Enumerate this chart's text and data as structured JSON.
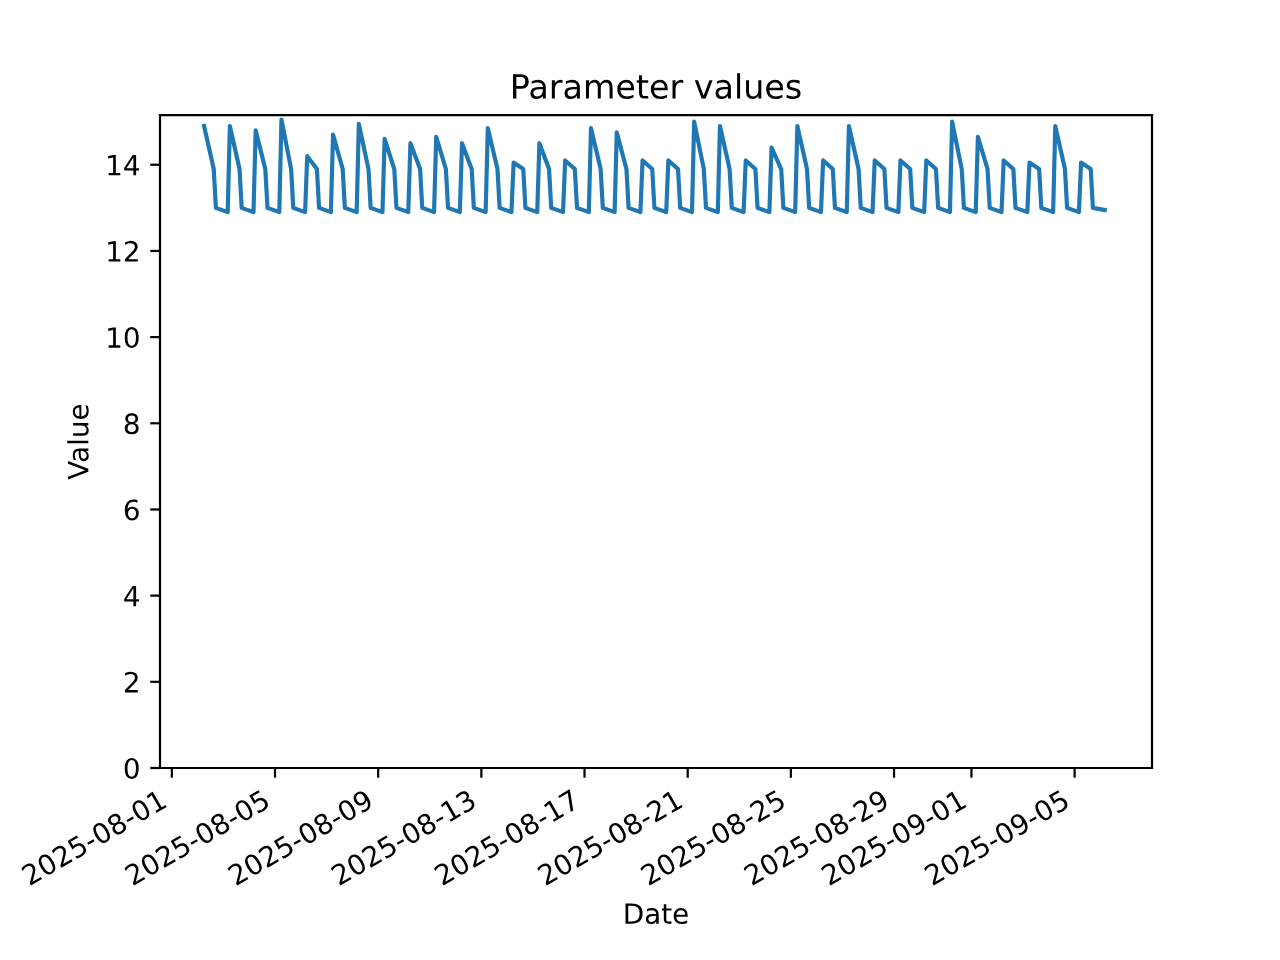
{
  "chart_data": {
    "type": "line",
    "title": "Parameter values",
    "xlabel": "Date",
    "ylabel": "Value",
    "xlim": [
      "2025-07-31T13:00",
      "2025-09-08T00:00"
    ],
    "ylim": [
      0,
      15.15
    ],
    "xticks": [
      "2025-08-01",
      "2025-08-05",
      "2025-08-09",
      "2025-08-13",
      "2025-08-17",
      "2025-08-21",
      "2025-08-25",
      "2025-08-29",
      "2025-09-01",
      "2025-09-05"
    ],
    "yticks": [
      0,
      2,
      4,
      6,
      8,
      10,
      12,
      14
    ],
    "grid": false,
    "legend": false,
    "marker": "none",
    "line_style": "solid",
    "series": [
      {
        "color": "#1f77b4",
        "x": [
          "2025-08-02T06:00",
          "2025-08-02T15:00",
          "2025-08-02T17:00",
          "2025-08-03T04:00",
          "2025-08-03T06:00",
          "2025-08-03T15:00",
          "2025-08-03T17:00",
          "2025-08-04T04:00",
          "2025-08-04T06:00",
          "2025-08-04T15:00",
          "2025-08-04T17:00",
          "2025-08-05T04:00",
          "2025-08-05T06:00",
          "2025-08-05T15:00",
          "2025-08-05T17:00",
          "2025-08-06T04:00",
          "2025-08-06T06:00",
          "2025-08-06T15:00",
          "2025-08-06T17:00",
          "2025-08-07T04:00",
          "2025-08-07T06:00",
          "2025-08-07T15:00",
          "2025-08-07T17:00",
          "2025-08-08T04:00",
          "2025-08-08T06:00",
          "2025-08-08T15:00",
          "2025-08-08T17:00",
          "2025-08-09T04:00",
          "2025-08-09T06:00",
          "2025-08-09T15:00",
          "2025-08-09T17:00",
          "2025-08-10T04:00",
          "2025-08-10T06:00",
          "2025-08-10T15:00",
          "2025-08-10T17:00",
          "2025-08-11T04:00",
          "2025-08-11T06:00",
          "2025-08-11T15:00",
          "2025-08-11T17:00",
          "2025-08-12T04:00",
          "2025-08-12T06:00",
          "2025-08-12T15:00",
          "2025-08-12T17:00",
          "2025-08-13T04:00",
          "2025-08-13T06:00",
          "2025-08-13T15:00",
          "2025-08-13T17:00",
          "2025-08-14T04:00",
          "2025-08-14T06:00",
          "2025-08-14T15:00",
          "2025-08-14T17:00",
          "2025-08-15T04:00",
          "2025-08-15T06:00",
          "2025-08-15T15:00",
          "2025-08-15T17:00",
          "2025-08-16T04:00",
          "2025-08-16T06:00",
          "2025-08-16T15:00",
          "2025-08-16T17:00",
          "2025-08-17T04:00",
          "2025-08-17T06:00",
          "2025-08-17T15:00",
          "2025-08-17T17:00",
          "2025-08-18T04:00",
          "2025-08-18T06:00",
          "2025-08-18T15:00",
          "2025-08-18T17:00",
          "2025-08-19T04:00",
          "2025-08-19T06:00",
          "2025-08-19T15:00",
          "2025-08-19T17:00",
          "2025-08-20T04:00",
          "2025-08-20T06:00",
          "2025-08-20T15:00",
          "2025-08-20T17:00",
          "2025-08-21T04:00",
          "2025-08-21T06:00",
          "2025-08-21T15:00",
          "2025-08-21T17:00",
          "2025-08-22T04:00",
          "2025-08-22T06:00",
          "2025-08-22T15:00",
          "2025-08-22T17:00",
          "2025-08-23T04:00",
          "2025-08-23T06:00",
          "2025-08-23T15:00",
          "2025-08-23T17:00",
          "2025-08-24T04:00",
          "2025-08-24T06:00",
          "2025-08-24T15:00",
          "2025-08-24T17:00",
          "2025-08-25T04:00",
          "2025-08-25T06:00",
          "2025-08-25T15:00",
          "2025-08-25T17:00",
          "2025-08-26T04:00",
          "2025-08-26T06:00",
          "2025-08-26T15:00",
          "2025-08-26T17:00",
          "2025-08-27T04:00",
          "2025-08-27T06:00",
          "2025-08-27T15:00",
          "2025-08-27T17:00",
          "2025-08-28T04:00",
          "2025-08-28T06:00",
          "2025-08-28T15:00",
          "2025-08-28T17:00",
          "2025-08-29T04:00",
          "2025-08-29T06:00",
          "2025-08-29T15:00",
          "2025-08-29T17:00",
          "2025-08-30T04:00",
          "2025-08-30T06:00",
          "2025-08-30T15:00",
          "2025-08-30T17:00",
          "2025-08-31T04:00",
          "2025-08-31T06:00",
          "2025-08-31T15:00",
          "2025-08-31T17:00",
          "2025-09-01T04:00",
          "2025-09-01T06:00",
          "2025-09-01T15:00",
          "2025-09-01T17:00",
          "2025-09-02T04:00",
          "2025-09-02T06:00",
          "2025-09-02T15:00",
          "2025-09-02T17:00",
          "2025-09-03T04:00",
          "2025-09-03T06:00",
          "2025-09-03T15:00",
          "2025-09-03T17:00",
          "2025-09-04T04:00",
          "2025-09-04T06:00",
          "2025-09-04T15:00",
          "2025-09-04T17:00",
          "2025-09-05T04:00",
          "2025-09-05T06:00",
          "2025-09-05T15:00",
          "2025-09-05T17:00",
          "2025-09-06T04:00"
        ],
        "values": [
          14.9,
          13.9,
          13.0,
          12.9,
          14.9,
          13.9,
          13.0,
          12.9,
          14.8,
          13.9,
          13.0,
          12.9,
          15.05,
          13.9,
          13.0,
          12.9,
          14.2,
          13.9,
          13.0,
          12.9,
          14.7,
          13.9,
          13.0,
          12.9,
          14.95,
          13.9,
          13.0,
          12.9,
          14.6,
          13.9,
          13.0,
          12.9,
          14.5,
          13.9,
          13.0,
          12.9,
          14.65,
          13.9,
          13.0,
          12.9,
          14.5,
          13.9,
          13.0,
          12.9,
          14.85,
          13.9,
          13.0,
          12.9,
          14.05,
          13.9,
          13.0,
          12.9,
          14.5,
          13.9,
          13.0,
          12.9,
          14.1,
          13.9,
          13.0,
          12.9,
          14.85,
          13.9,
          13.0,
          12.9,
          14.75,
          13.9,
          13.0,
          12.9,
          14.1,
          13.9,
          13.0,
          12.9,
          14.1,
          13.9,
          13.0,
          12.9,
          15.0,
          13.9,
          13.0,
          12.9,
          14.9,
          13.9,
          13.0,
          12.9,
          14.1,
          13.9,
          13.0,
          12.9,
          14.4,
          13.9,
          13.0,
          12.9,
          14.9,
          13.9,
          13.0,
          12.9,
          14.1,
          13.9,
          13.0,
          12.9,
          14.9,
          13.9,
          13.0,
          12.9,
          14.1,
          13.9,
          13.0,
          12.9,
          14.1,
          13.9,
          13.0,
          12.9,
          14.1,
          13.9,
          13.0,
          12.9,
          15.0,
          13.9,
          13.0,
          12.9,
          14.65,
          13.9,
          13.0,
          12.9,
          14.1,
          13.9,
          13.0,
          12.9,
          14.05,
          13.9,
          13.0,
          12.9,
          14.9,
          13.9,
          13.0,
          12.9,
          14.05,
          13.9,
          13.0,
          12.95
        ]
      }
    ]
  }
}
